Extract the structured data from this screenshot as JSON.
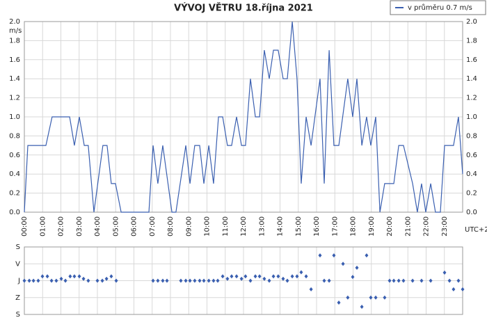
{
  "chart_data": [
    {
      "type": "line",
      "title": "VÝVOJ VĚTRU  18.října 2021",
      "ylabel": "m/s",
      "xlabel": "UTC+2",
      "xlim": [
        0,
        24
      ],
      "xticks": [
        {
          "value": 0,
          "label": "00:00"
        },
        {
          "value": 1,
          "label": "01:00"
        },
        {
          "value": 2,
          "label": "02:00"
        },
        {
          "value": 3,
          "label": "03:00"
        },
        {
          "value": 4,
          "label": "04:00"
        },
        {
          "value": 5,
          "label": "05:00"
        },
        {
          "value": 6,
          "label": "06:00"
        },
        {
          "value": 7,
          "label": "07:00"
        },
        {
          "value": 8,
          "label": "08:00"
        },
        {
          "value": 9,
          "label": "09:00"
        },
        {
          "value": 10,
          "label": "10:00"
        },
        {
          "value": 11,
          "label": "11:00"
        },
        {
          "value": 12,
          "label": "12:00"
        },
        {
          "value": 13,
          "label": "13:00"
        },
        {
          "value": 14,
          "label": "14:00"
        },
        {
          "value": 15,
          "label": "15:00"
        },
        {
          "value": 16,
          "label": "16:00"
        },
        {
          "value": 17,
          "label": "17:00"
        },
        {
          "value": 18,
          "label": "18:00"
        },
        {
          "value": 19,
          "label": "19:00"
        },
        {
          "value": 20,
          "label": "20:00"
        },
        {
          "value": 21,
          "label": "21:00"
        },
        {
          "value": 22,
          "label": "22:00"
        },
        {
          "value": 23,
          "label": "23:00"
        }
      ],
      "ylim": [
        0,
        2
      ],
      "yticks": [
        {
          "value": 0,
          "label": "0.0"
        },
        0.2,
        0.4,
        0.6,
        0.8,
        {
          "value": 1,
          "label": "1.0"
        },
        1.2,
        1.4,
        1.6,
        1.8,
        {
          "value": 2,
          "label": "2.0"
        }
      ],
      "grid": true,
      "legend": "top-right",
      "x": [
        0,
        0.19,
        1.18,
        1.52,
        2.48,
        2.74,
        3.01,
        3.28,
        3.5,
        3.81,
        4.3,
        4.53,
        4.76,
        4.99,
        5.3,
        6.82,
        7.05,
        7.31,
        7.58,
        8.08,
        8.3,
        8.84,
        9.07,
        9.33,
        9.6,
        9.83,
        10.1,
        10.36,
        10.63,
        10.86,
        11.12,
        11.35,
        11.62,
        11.89,
        12.11,
        12.38,
        12.65,
        12.88,
        13.14,
        13.41,
        13.64,
        13.9,
        14.17,
        14.4,
        14.67,
        14.93,
        15.16,
        15.43,
        15.7,
        16.19,
        16.42,
        16.69,
        16.95,
        17.22,
        17.71,
        17.98,
        18.21,
        18.48,
        18.74,
        18.97,
        19.24,
        19.47,
        19.73,
        20.23,
        20.5,
        20.76,
        21.26,
        21.52,
        21.75,
        21.98,
        22.25,
        22.51,
        22.78,
        23.01,
        23.5,
        23.77,
        24
      ],
      "series": [
        {
          "name": "v průměru 0.7 m/s",
          "color": "#3a5fb0",
          "values": [
            0,
            0.7,
            0.7,
            1,
            1,
            0.7,
            1,
            0.7,
            0.7,
            0,
            0.7,
            0.7,
            0.3,
            0.3,
            0,
            0,
            0.7,
            0.3,
            0.7,
            0,
            0,
            0.7,
            0.3,
            0.7,
            0.7,
            0.3,
            0.7,
            0.3,
            1,
            1,
            0.7,
            0.7,
            1,
            0.7,
            0.7,
            1.4,
            1,
            1,
            1.7,
            1.4,
            1.7,
            1.7,
            1.4,
            1.4,
            2,
            1.4,
            0.3,
            1,
            0.7,
            1.4,
            0.3,
            1.7,
            0.7,
            0.7,
            1.4,
            1,
            1.4,
            0.7,
            1,
            0.7,
            1,
            0,
            0.3,
            0.3,
            0.7,
            0.7,
            0.3,
            0,
            0.3,
            0,
            0.3,
            0,
            0,
            0.7,
            0.7,
            1,
            0.4
          ]
        }
      ]
    },
    {
      "type": "scatter",
      "xlim": [
        0,
        24
      ],
      "ylim": [
        360,
        0
      ],
      "color": "#3a5fb0",
      "yticks": [
        {
          "value": 0,
          "label": "S"
        },
        {
          "value": 90,
          "label": "V"
        },
        {
          "value": 180,
          "label": "J"
        },
        {
          "value": 270,
          "label": "Z"
        },
        {
          "value": 360,
          "label": "S"
        }
      ],
      "x": [
        0,
        0.27,
        0.5,
        0.76,
        0.99,
        1.26,
        1.49,
        1.75,
        2.02,
        2.25,
        2.51,
        2.74,
        3.01,
        3.24,
        3.5,
        4,
        4.27,
        4.5,
        4.76,
        5.03,
        7.05,
        7.31,
        7.58,
        7.81,
        8.57,
        8.84,
        9.07,
        9.33,
        9.6,
        9.83,
        10.1,
        10.36,
        10.59,
        10.86,
        11.12,
        11.35,
        11.62,
        11.89,
        12.11,
        12.38,
        12.65,
        12.88,
        13.14,
        13.41,
        13.64,
        13.9,
        14.17,
        14.4,
        14.67,
        14.93,
        15.16,
        15.43,
        15.7,
        16.19,
        16.42,
        16.69,
        16.95,
        17.22,
        17.45,
        17.71,
        17.98,
        18.21,
        18.48,
        18.74,
        18.97,
        19.24,
        19.73,
        20,
        20.23,
        20.5,
        20.76,
        21.26,
        21.75,
        22.25,
        23.01,
        23.28,
        23.5,
        23.77,
        24
      ],
      "values": [
        180,
        180,
        180,
        180,
        157,
        157,
        180,
        180,
        170,
        180,
        157,
        157,
        157,
        170,
        180,
        180,
        180,
        170,
        157,
        180,
        180,
        180,
        180,
        180,
        180,
        180,
        180,
        180,
        180,
        180,
        180,
        180,
        180,
        157,
        170,
        157,
        157,
        170,
        157,
        180,
        157,
        157,
        170,
        180,
        157,
        157,
        170,
        180,
        157,
        157,
        135,
        157,
        226,
        45,
        180,
        180,
        45,
        297,
        90,
        270,
        160,
        111,
        319,
        45,
        270,
        270,
        270,
        180,
        180,
        180,
        180,
        180,
        180,
        180,
        137,
        180,
        226,
        180,
        226
      ]
    }
  ]
}
